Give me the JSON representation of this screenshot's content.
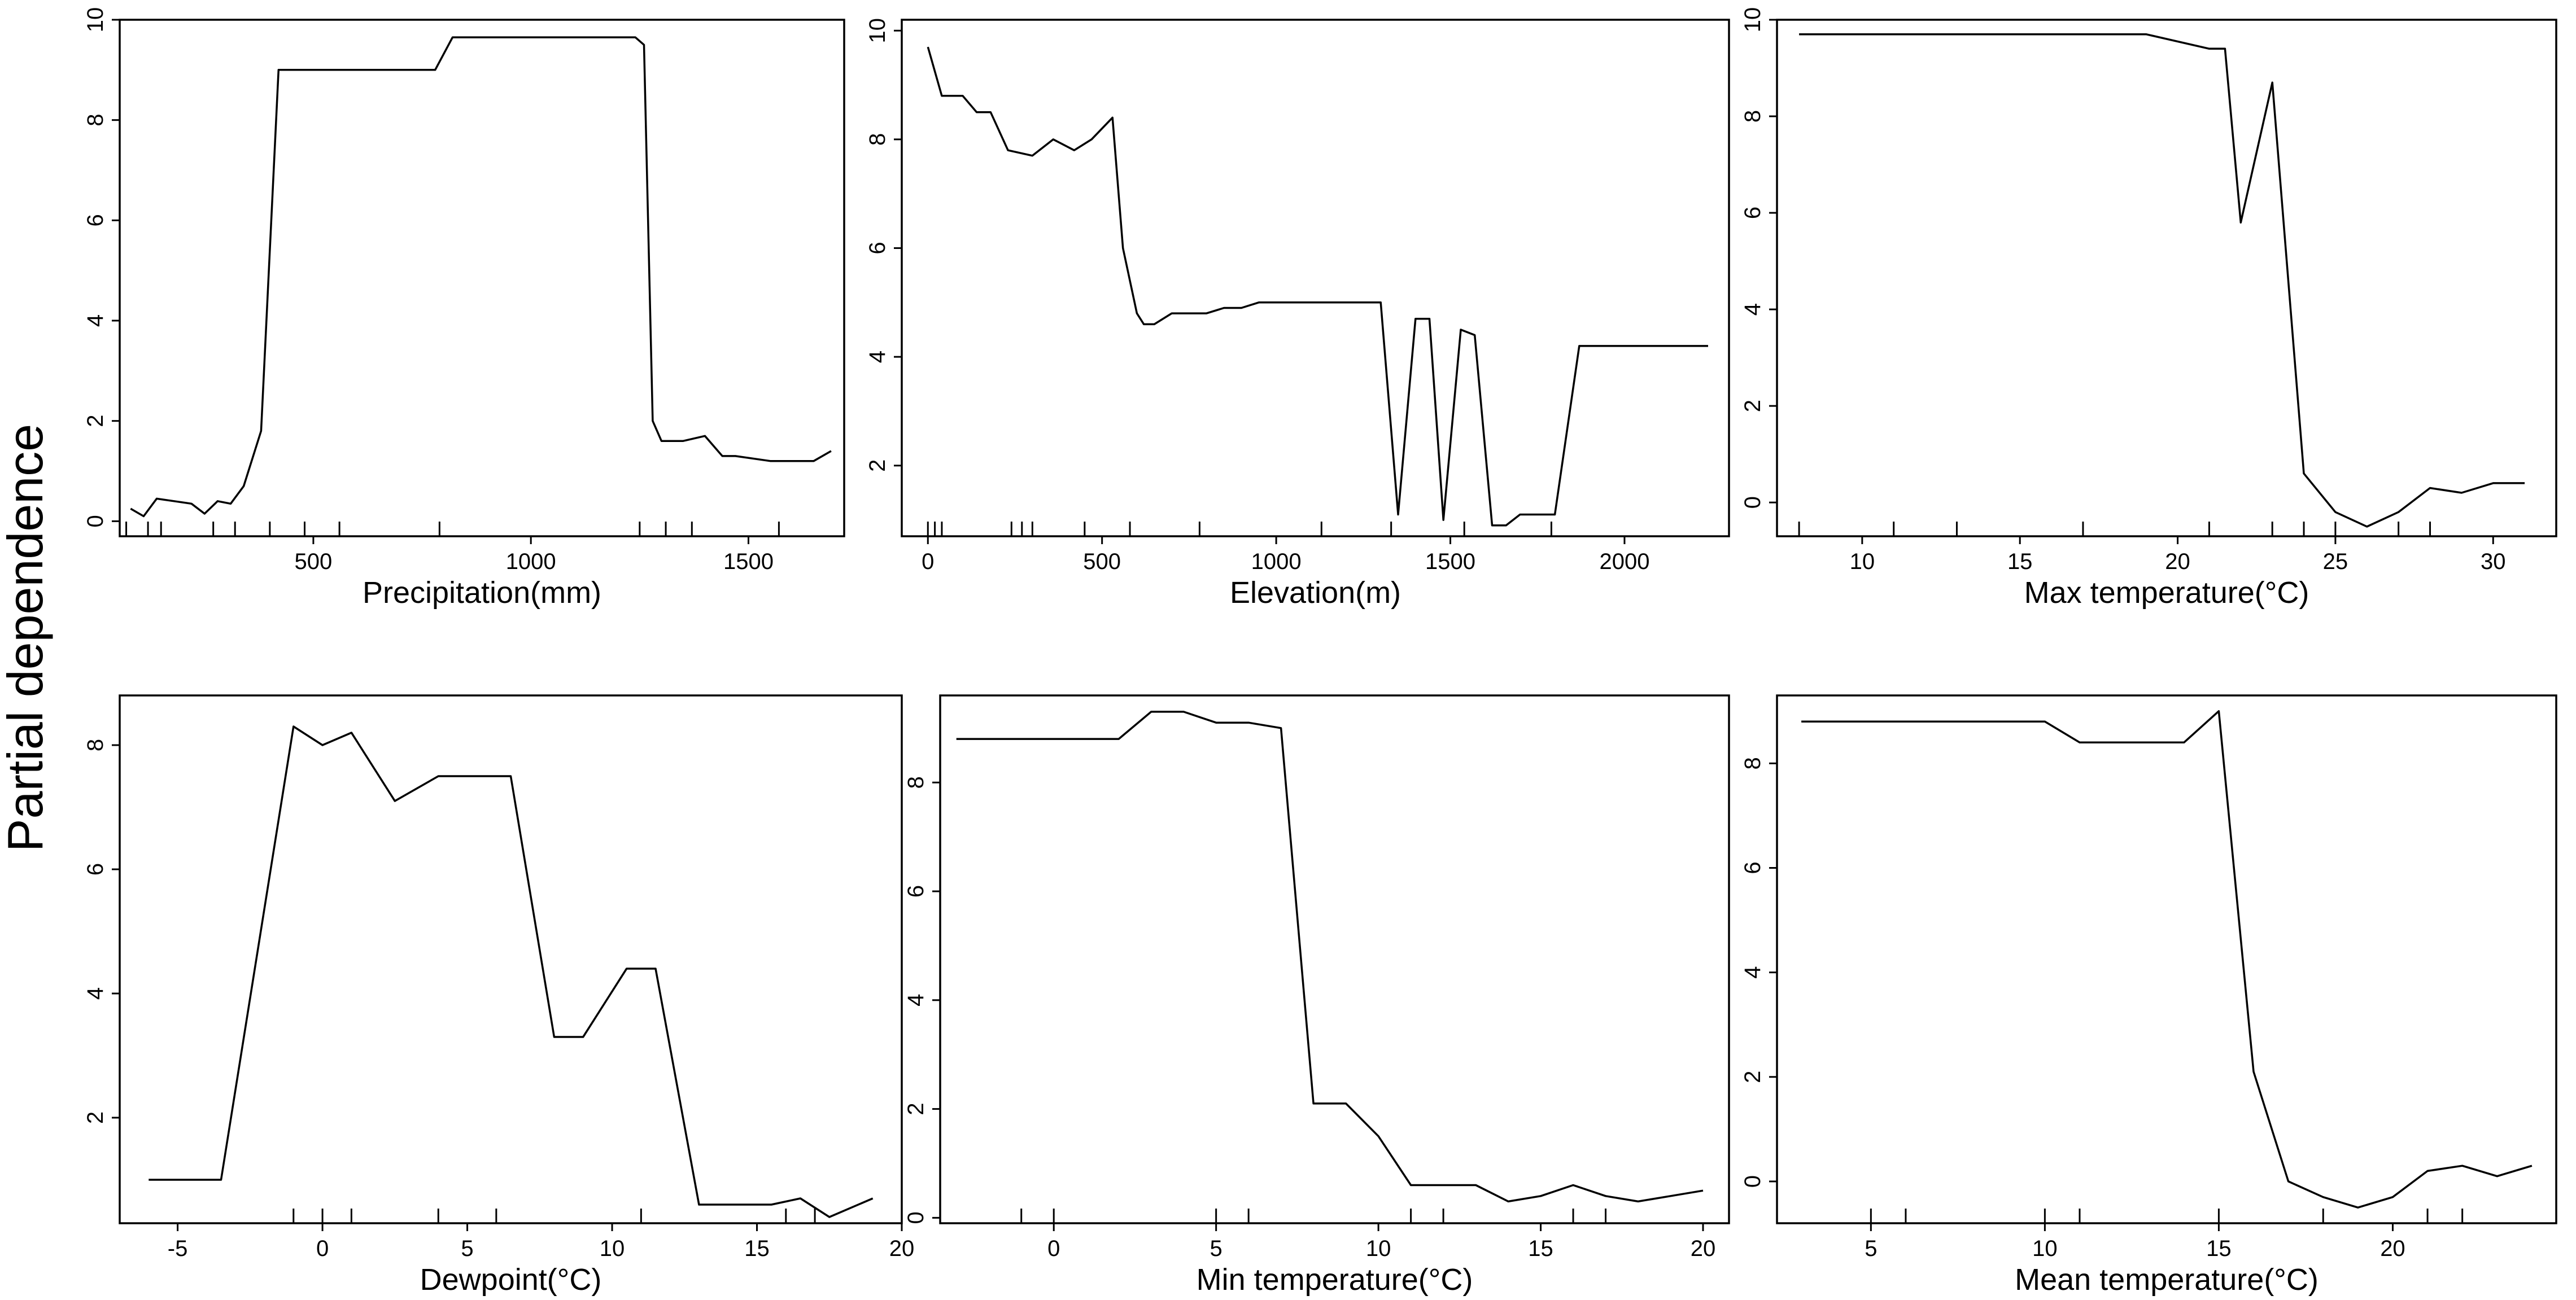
{
  "figure": {
    "ylabel": "Partial dependence"
  },
  "chart_data": [
    {
      "type": "line",
      "xlabel": "Precipitation(mm)",
      "ylabel": "",
      "xlim": [
        55,
        1720
      ],
      "ylim": [
        -0.3,
        10
      ],
      "xticks": [
        500,
        1000,
        1500
      ],
      "yticks": [
        0,
        2,
        4,
        6,
        8,
        10
      ],
      "rug": [
        70,
        120,
        150,
        270,
        320,
        400,
        480,
        560,
        790,
        1250,
        1310,
        1370,
        1570
      ],
      "grid": false,
      "legend": "none",
      "series": [
        {
          "x": [
            80,
            110,
            140,
            180,
            220,
            250,
            280,
            310,
            340,
            380,
            420,
            500,
            700,
            780,
            820,
            900,
            1100,
            1240,
            1260,
            1280,
            1300,
            1350,
            1400,
            1440,
            1470,
            1550,
            1600,
            1650,
            1690
          ],
          "y": [
            0.25,
            0.1,
            0.45,
            0.4,
            0.35,
            0.15,
            0.4,
            0.35,
            0.7,
            1.8,
            9.0,
            9.0,
            9.0,
            9.0,
            9.65,
            9.65,
            9.65,
            9.65,
            9.5,
            2.0,
            1.6,
            1.6,
            1.7,
            1.3,
            1.3,
            1.2,
            1.2,
            1.2,
            1.4
          ]
        }
      ]
    },
    {
      "type": "line",
      "xlabel": "Elevation(m)",
      "ylabel": "",
      "xlim": [
        -75,
        2300
      ],
      "ylim": [
        0.7,
        10.2
      ],
      "xticks": [
        0,
        500,
        1000,
        1500,
        2000
      ],
      "yticks": [
        2,
        4,
        6,
        8,
        10
      ],
      "rug": [
        0,
        20,
        40,
        240,
        270,
        300,
        450,
        580,
        780,
        1130,
        1330,
        1540,
        1790
      ],
      "grid": false,
      "legend": "none",
      "series": [
        {
          "x": [
            0,
            40,
            100,
            140,
            180,
            230,
            300,
            360,
            420,
            470,
            530,
            560,
            600,
            620,
            650,
            700,
            750,
            800,
            850,
            900,
            950,
            1000,
            1100,
            1200,
            1300,
            1350,
            1400,
            1440,
            1480,
            1530,
            1570,
            1620,
            1660,
            1700,
            1800,
            1870,
            1900,
            2000,
            2100,
            2240
          ],
          "y": [
            9.7,
            8.8,
            8.8,
            8.5,
            8.5,
            7.8,
            7.7,
            8.0,
            7.8,
            8.0,
            8.4,
            6.0,
            4.8,
            4.6,
            4.6,
            4.8,
            4.8,
            4.8,
            4.9,
            4.9,
            5.0,
            5.0,
            5.0,
            5.0,
            5.0,
            1.1,
            4.7,
            4.7,
            1.0,
            4.5,
            4.4,
            0.9,
            0.9,
            1.1,
            1.1,
            4.2,
            4.2,
            4.2,
            4.2,
            4.2
          ]
        }
      ]
    },
    {
      "type": "line",
      "xlabel": "Max temperature(°C)",
      "ylabel": "",
      "xlim": [
        7.3,
        32.0
      ],
      "ylim": [
        -0.7,
        10.0
      ],
      "xticks": [
        10,
        15,
        20,
        25,
        30
      ],
      "yticks": [
        0,
        2,
        4,
        6,
        8,
        10
      ],
      "rug": [
        8,
        11,
        13,
        17,
        21,
        23,
        24,
        25,
        27,
        28
      ],
      "grid": false,
      "legend": "none",
      "series": [
        {
          "x": [
            8,
            12,
            16,
            18,
            19,
            21,
            21.5,
            22,
            23,
            24,
            25,
            26,
            27,
            28,
            29,
            30,
            31
          ],
          "y": [
            9.7,
            9.7,
            9.7,
            9.7,
            9.7,
            9.4,
            9.4,
            5.8,
            8.7,
            0.6,
            -0.2,
            -0.5,
            -0.2,
            0.3,
            0.2,
            0.4,
            0.4
          ]
        }
      ]
    },
    {
      "type": "line",
      "xlabel": "Dewpoint(°C)",
      "ylabel": "",
      "xlim": [
        -7.0,
        20.0
      ],
      "ylim": [
        0.3,
        8.8
      ],
      "xticks": [
        -5,
        0,
        5,
        10,
        15,
        20
      ],
      "yticks": [
        2,
        4,
        6,
        8
      ],
      "rug": [
        -1,
        0,
        1,
        4,
        6,
        11,
        16,
        17
      ],
      "grid": false,
      "legend": "none",
      "series": [
        {
          "x": [
            -6,
            -3.5,
            -1,
            0,
            1,
            2.5,
            4,
            6.5,
            8,
            9,
            10.5,
            11.5,
            13,
            15.5,
            16.5,
            17.5,
            19
          ],
          "y": [
            1.0,
            1.0,
            8.3,
            8.0,
            8.2,
            7.1,
            7.5,
            7.5,
            3.3,
            3.3,
            4.4,
            4.4,
            0.6,
            0.6,
            0.7,
            0.4,
            0.7
          ]
        }
      ]
    },
    {
      "type": "line",
      "xlabel": "Min temperature(°C)",
      "ylabel": "",
      "xlim": [
        -3.5,
        20.8
      ],
      "ylim": [
        -0.1,
        9.6
      ],
      "xticks": [
        0,
        5,
        10,
        15,
        20
      ],
      "yticks": [
        0,
        2,
        4,
        6,
        8
      ],
      "rug": [
        -1,
        0,
        5,
        6,
        11,
        12,
        16,
        17
      ],
      "grid": false,
      "legend": "none",
      "series": [
        {
          "x": [
            -3,
            1,
            2,
            3,
            4,
            5,
            6,
            7,
            8,
            9,
            10,
            11,
            12,
            13,
            14,
            15,
            16,
            17,
            18,
            19,
            20
          ],
          "y": [
            8.8,
            8.8,
            8.8,
            9.3,
            9.3,
            9.1,
            9.1,
            9.0,
            2.1,
            2.1,
            1.5,
            0.6,
            0.6,
            0.6,
            0.3,
            0.4,
            0.6,
            0.4,
            0.3,
            0.4,
            0.5
          ]
        }
      ]
    },
    {
      "type": "line",
      "xlabel": "Mean temperature(°C)",
      "ylabel": "",
      "xlim": [
        2.3,
        24.7
      ],
      "ylim": [
        -0.8,
        9.3
      ],
      "xticks": [
        5,
        10,
        15,
        20
      ],
      "yticks": [
        0,
        2,
        4,
        6,
        8
      ],
      "rug": [
        5,
        6,
        10,
        11,
        15,
        18,
        21,
        22
      ],
      "grid": false,
      "legend": "none",
      "series": [
        {
          "x": [
            3,
            10,
            11,
            12,
            14,
            15,
            16,
            17,
            18,
            19,
            20,
            21,
            22,
            23,
            24
          ],
          "y": [
            8.8,
            8.8,
            8.4,
            8.4,
            8.4,
            9.0,
            2.1,
            0.0,
            -0.3,
            -0.5,
            -0.3,
            0.2,
            0.3,
            0.1,
            0.3
          ]
        }
      ]
    }
  ]
}
